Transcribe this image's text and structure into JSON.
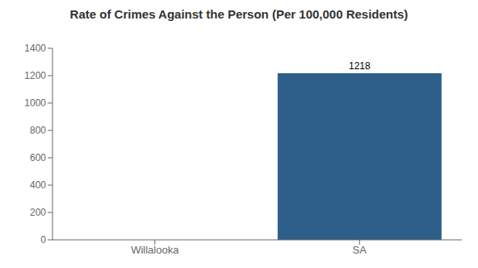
{
  "chart_data": {
    "type": "bar",
    "title": "Rate of Crimes Against the Person (Per 100,000 Residents)",
    "categories": [
      "Willalooka",
      "SA"
    ],
    "values": [
      0,
      1218
    ],
    "color": "#2e5f8a",
    "ylim": [
      0,
      1400
    ],
    "yticks": [
      0,
      200,
      400,
      600,
      800,
      1000,
      1200,
      1400
    ],
    "grid": false,
    "data_labels": true
  }
}
